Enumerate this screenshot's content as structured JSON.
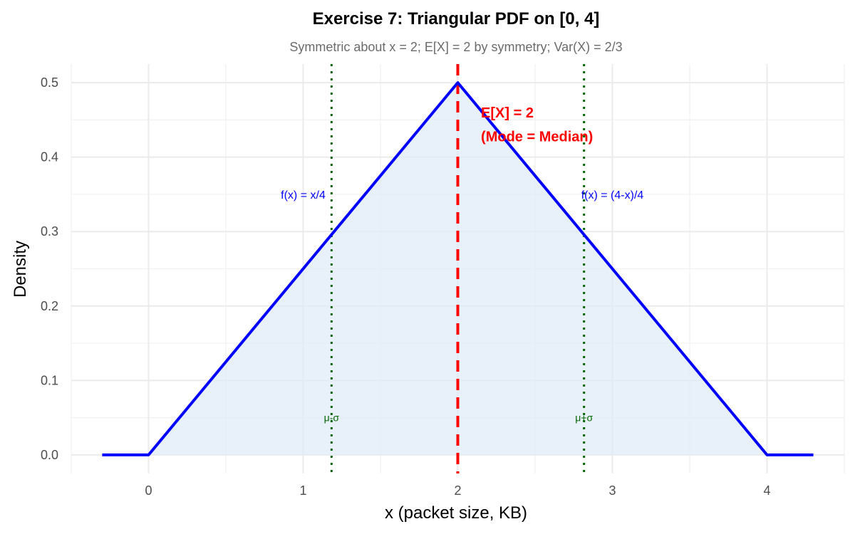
{
  "chart_data": {
    "type": "line",
    "title": "Exercise 7: Triangular PDF on [0, 4]",
    "subtitle": "Symmetric about x = 2; E[X] = 2 by symmetry; Var(X) = 2/3",
    "xlabel": "x (packet size, KB)",
    "ylabel": "Density",
    "xlim": [
      -0.5,
      4.5
    ],
    "ylim": [
      -0.025,
      0.525
    ],
    "x_ticks": [
      0,
      1,
      2,
      3,
      4
    ],
    "x_tick_labels": [
      "0",
      "1",
      "2",
      "3",
      "4"
    ],
    "y_ticks": [
      0.0,
      0.1,
      0.2,
      0.3,
      0.4,
      0.5
    ],
    "y_tick_labels": [
      "0.0",
      "0.1",
      "0.2",
      "0.3",
      "0.4",
      "0.5"
    ],
    "grid": true,
    "series": [
      {
        "name": "pdf",
        "color": "#0000ff",
        "fill": "#deebf7",
        "x": [
          -0.3,
          0,
          2,
          4,
          4.3
        ],
        "y": [
          0,
          0,
          0.5,
          0,
          0
        ]
      }
    ],
    "vlines": [
      {
        "name": "mean",
        "x": 2,
        "color": "#ff0000",
        "style": "dashed"
      },
      {
        "name": "mu-minus-sigma",
        "x": 1.1835,
        "color": "#006400",
        "style": "dotted"
      },
      {
        "name": "mu-plus-sigma",
        "x": 2.8165,
        "color": "#006400",
        "style": "dotted"
      }
    ],
    "annotations": [
      {
        "name": "left-formula",
        "text": "f(x) = x/4",
        "x": 1.0,
        "y": 0.35,
        "color": "#0000ff"
      },
      {
        "name": "right-formula",
        "text": "f(x) = (4-x)/4",
        "x": 3.0,
        "y": 0.35,
        "color": "#0000ff"
      },
      {
        "name": "mean-label",
        "text": "E[X] = 2",
        "x": 2.15,
        "y": 0.46,
        "color": "#ff0000"
      },
      {
        "name": "mode-median-label",
        "text": "(Mode = Median)",
        "x": 2.15,
        "y": 0.428,
        "color": "#ff0000"
      },
      {
        "name": "mu-minus-sigma-label",
        "text": "μ-σ",
        "x": 1.1835,
        "y": 0.05,
        "color": "#006400"
      },
      {
        "name": "mu-plus-sigma-label",
        "text": "μ+σ",
        "x": 2.8165,
        "y": 0.05,
        "color": "#006400"
      }
    ]
  }
}
